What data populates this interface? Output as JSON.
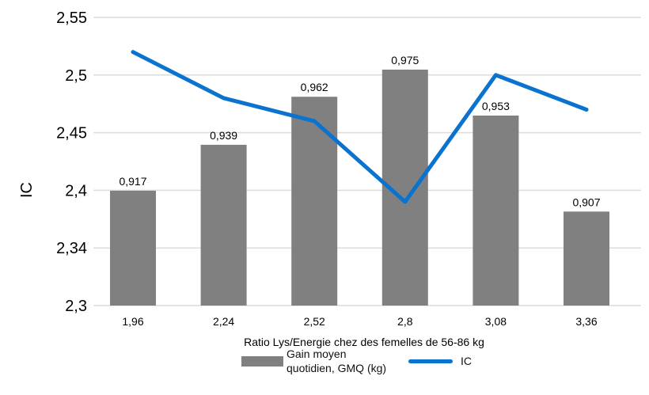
{
  "chart_data": {
    "type": "bar+line",
    "xlabel": "Ratio Lys/Energie chez des femelles de 56-86 kg",
    "ylabel": "IC",
    "categories": [
      "1,96",
      "2,24",
      "2,52",
      "2,8",
      "3,08",
      "3,36"
    ],
    "y_ticks": [
      "2,55",
      "2,5",
      "2,45",
      "2,4",
      "2,34",
      "2,3"
    ],
    "ylim": [
      2.3,
      2.55
    ],
    "grid": "horizontal",
    "legend_position": "bottom",
    "series": [
      {
        "name": "Gain moyen quotidien, GMQ (kg)",
        "type": "bar",
        "axis": "secondary (hidden)",
        "color": "#808080",
        "values": [
          0.917,
          0.939,
          0.962,
          0.975,
          0.953,
          0.907
        ],
        "labels": [
          "0,917",
          "0,939",
          "0,962",
          "0,975",
          "0,953",
          "0,907"
        ]
      },
      {
        "name": "IC",
        "type": "line",
        "color": "#0a72cf",
        "values": [
          2.52,
          2.48,
          2.46,
          2.39,
          2.5,
          2.47
        ]
      }
    ]
  }
}
